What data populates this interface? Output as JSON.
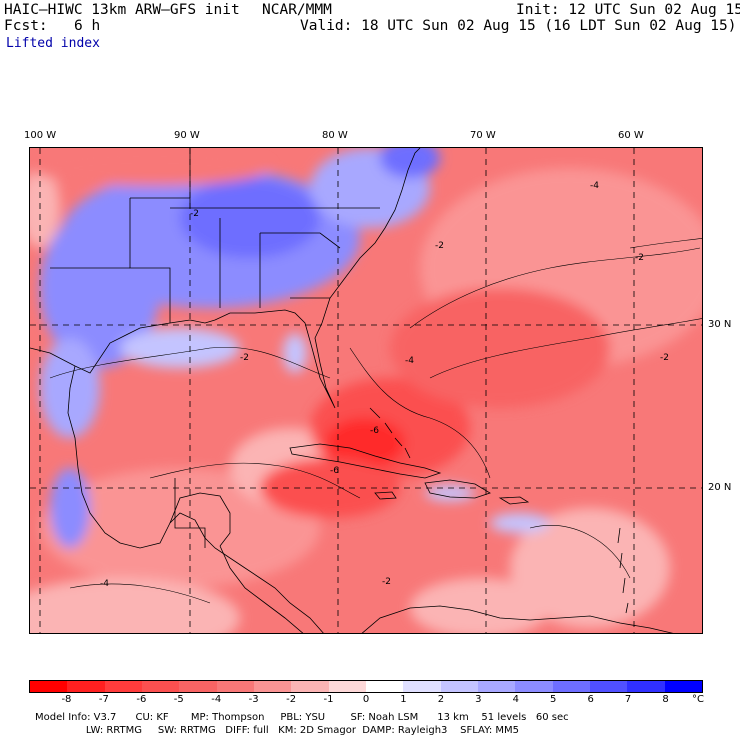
{
  "header": {
    "model": "HAIC–HIWC 13km ARW–GFS init",
    "org": "NCAR/MMM",
    "init": "Init: 12 UTC Sun 02 Aug 15",
    "fcst_label": "Fcst:",
    "fcst_value": "6 h",
    "valid": "Valid: 18 UTC Sun 02 Aug 15 (16 LDT Sun 02 Aug 15)",
    "field": "Lifted index"
  },
  "map": {
    "lon_labels": [
      "100 W",
      "90 W",
      "80 W",
      "70 W",
      "60 W"
    ],
    "lat_labels": [
      "30 N",
      "20 N"
    ],
    "contour_labels": [
      "-2",
      "-4",
      "-6"
    ],
    "colors": {
      "neg_strong": "#ff2a2a",
      "neg_mid": "#f86464",
      "neg_light": "#fbb4b4",
      "pos_light": "#b4b4ff",
      "pos_mid": "#6e6eff",
      "land_line": "#000000"
    }
  },
  "colorbar": {
    "unit": "°C",
    "ticks": [
      "-8",
      "-7",
      "-6",
      "-5",
      "-4",
      "-3",
      "-2",
      "-1",
      "0",
      "1",
      "2",
      "3",
      "4",
      "5",
      "6",
      "7",
      "8"
    ],
    "colors": [
      "#ff0000",
      "#ff2020",
      "#ff3c3c",
      "#fb5050",
      "#f86464",
      "#f87878",
      "#fa9494",
      "#fbb4b4",
      "#fdd8d8",
      "#ffffff",
      "#e0e0ff",
      "#c4c4ff",
      "#a8a8ff",
      "#8c8cff",
      "#6e6eff",
      "#5050ff",
      "#3030ff",
      "#0000ff"
    ]
  },
  "footer": {
    "line1": "Model Info: V3.7      CU: KF       MP: Thompson     PBL: YSU        SF: Noah LSM      13 km    51 levels   60 sec",
    "line2": "                LW: RRTMG     SW: RRTMG   DIFF: full   KM: 2D Smagor  DAMP: Rayleigh3    SFLAY: MM5"
  }
}
